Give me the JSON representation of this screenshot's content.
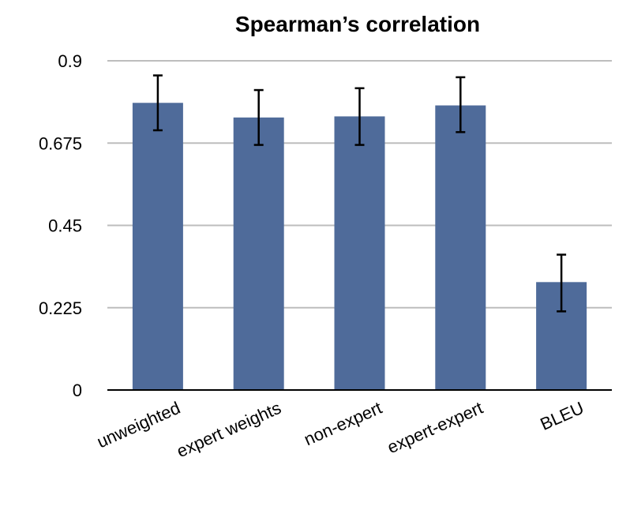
{
  "chart_data": {
    "type": "bar",
    "title": "Spearman’s correlation",
    "xlabel": "",
    "ylabel": "",
    "categories": [
      "unweighted",
      "expert weights",
      "non-expert",
      "expert-expert",
      "BLEU"
    ],
    "values": [
      0.785,
      0.745,
      0.748,
      0.778,
      0.295
    ],
    "error_low": [
      0.71,
      0.67,
      0.67,
      0.705,
      0.215
    ],
    "error_high": [
      0.86,
      0.82,
      0.825,
      0.855,
      0.37
    ],
    "ylim": [
      0,
      0.9
    ],
    "y_ticks": [
      0,
      0.225,
      0.45,
      0.675,
      0.9
    ],
    "y_tick_labels": [
      "0",
      "0.225",
      "0.45",
      "0.675",
      "0.9"
    ],
    "grid": true,
    "legend": "none",
    "bar_color": "#4f6b9a",
    "grid_color": "#bdbdbd"
  }
}
